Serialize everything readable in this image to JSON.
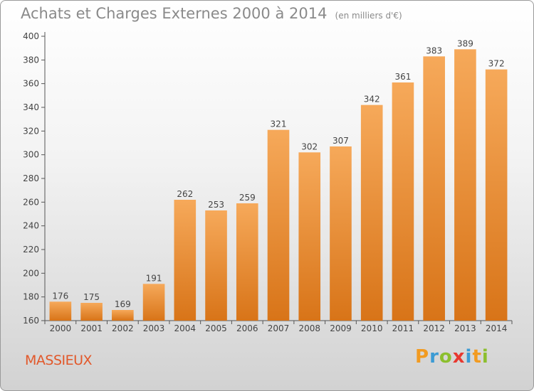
{
  "header": {
    "title": "Achats et Charges Externes 2000 à 2014",
    "subtitle": "(en milliers d'€)"
  },
  "footer": {
    "place": "MASSIEUX",
    "brand": [
      "P",
      "r",
      "o",
      "x",
      "i",
      "t",
      "i"
    ]
  },
  "colors": {
    "bar_top": "#f6a95a",
    "bar_bottom": "#d87418",
    "axis": "#555555",
    "grid": "#e8e8e8",
    "place": "#e2582a"
  },
  "chart_data": {
    "type": "bar",
    "categories": [
      "2000",
      "2001",
      "2002",
      "2003",
      "2004",
      "2005",
      "2006",
      "2007",
      "2008",
      "2009",
      "2010",
      "2011",
      "2012",
      "2013",
      "2014"
    ],
    "values": [
      176,
      175,
      169,
      191,
      262,
      253,
      259,
      321,
      302,
      307,
      342,
      361,
      383,
      389,
      372
    ],
    "ylim": [
      160,
      400
    ],
    "yticks": [
      160,
      180,
      200,
      220,
      240,
      260,
      280,
      300,
      320,
      340,
      360,
      380,
      400
    ],
    "xlabel": "",
    "ylabel": "",
    "grid": false,
    "data_labels": true
  }
}
